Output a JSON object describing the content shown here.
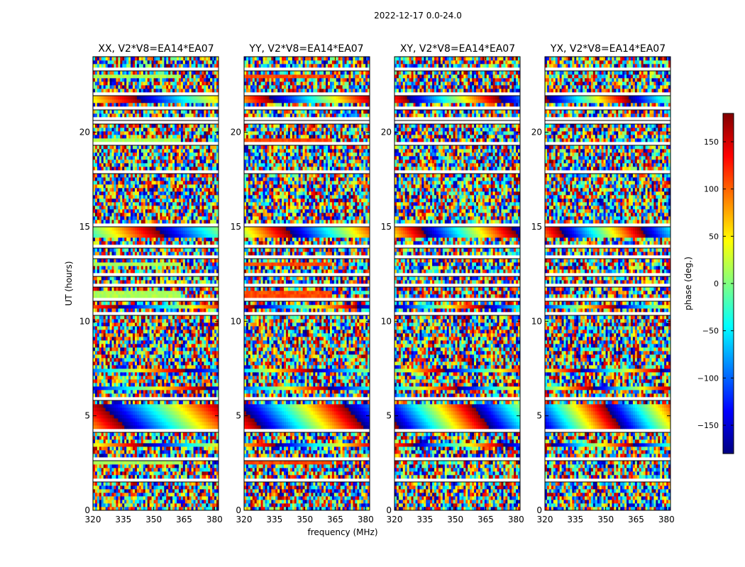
{
  "figure": {
    "suptitle": "2022-12-17 0.0-24.0",
    "xlabel": "frequency (MHz)",
    "ylabel": "UT (hours)"
  },
  "colorbar": {
    "label": "phase (deg.)",
    "ticks": [
      150,
      100,
      50,
      0,
      -50,
      -100,
      -150
    ],
    "tick_labels": [
      "150",
      "100",
      "50",
      "0",
      "−50",
      "−100",
      "−150"
    ],
    "range": [
      -180,
      180
    ],
    "colormap": "jet"
  },
  "chart_data": {
    "type": "heatmap",
    "x_range": [
      320,
      382
    ],
    "y_range": [
      0,
      24
    ],
    "xticks": [
      320,
      335,
      350,
      365,
      380
    ],
    "yticks": [
      0,
      5,
      10,
      15,
      20
    ],
    "value_label": "phase (deg.)",
    "value_range": [
      -180,
      180
    ],
    "panels": [
      {
        "title": "XX, V2*V8=EA14*EA07",
        "flat_phase": 15,
        "flat_channel_end": 363
      },
      {
        "title": "YY, V2*V8=EA14*EA07",
        "flat_phase": 110,
        "flat_channel_end": 363
      },
      {
        "title": "XY, V2*V8=EA14*EA07"
      },
      {
        "title": "YX, V2*V8=EA14*EA07"
      }
    ],
    "flagged_ut_hours": [
      [
        0.35,
        0.42
      ],
      [
        1.05,
        1.12
      ],
      [
        1.55,
        1.62
      ],
      [
        2.35,
        2.42
      ],
      [
        2.55,
        2.85
      ],
      [
        3.7,
        3.78
      ],
      [
        4.15,
        4.22
      ],
      [
        5.85,
        5.92
      ],
      [
        6.35,
        6.42
      ],
      [
        6.95,
        7.02
      ],
      [
        7.6,
        7.67
      ],
      [
        8.35,
        8.42
      ],
      [
        8.95,
        9.02
      ],
      [
        9.7,
        9.82
      ],
      [
        10.4,
        10.47
      ],
      [
        11.1,
        11.17
      ],
      [
        11.85,
        11.92
      ],
      [
        12.4,
        12.47
      ],
      [
        12.95,
        13.02
      ],
      [
        13.35,
        13.45
      ],
      [
        13.9,
        13.97
      ],
      [
        14.35,
        14.42
      ],
      [
        14.95,
        15.2
      ],
      [
        15.5,
        15.57
      ],
      [
        16.05,
        16.12
      ],
      [
        16.45,
        16.55
      ],
      [
        17.05,
        17.12
      ],
      [
        17.45,
        17.52
      ],
      [
        17.9,
        17.97
      ],
      [
        18.35,
        18.42
      ],
      [
        19.3,
        19.55
      ],
      [
        20.45,
        20.85
      ],
      [
        21.25,
        21.32
      ],
      [
        22.0,
        22.07
      ],
      [
        22.7,
        22.77
      ],
      [
        23.3,
        23.37
      ]
    ],
    "flat_ut_bands": [
      [
        2.4,
        2.55
      ],
      [
        11.3,
        11.55
      ],
      [
        12.85,
        13.05
      ],
      [
        19.55,
        19.75
      ],
      [
        22.85,
        23.05
      ]
    ],
    "fringe_ut_bands": [
      [
        3.4,
        3.65
      ],
      [
        4.3,
        5.6
      ],
      [
        6.4,
        6.6
      ],
      [
        7.3,
        7.45
      ],
      [
        10.6,
        10.9
      ],
      [
        14.5,
        15.0
      ],
      [
        21.6,
        21.9
      ]
    ]
  }
}
